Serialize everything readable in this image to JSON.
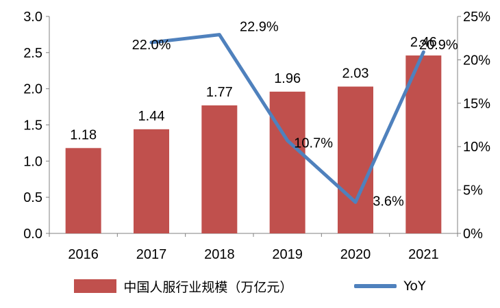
{
  "chart_data": {
    "type": "bar",
    "categories": [
      "2016",
      "2017",
      "2018",
      "2019",
      "2020",
      "2021"
    ],
    "series": [
      {
        "name": "中国人服行业规模（万亿元）",
        "type": "bar",
        "axis": "left",
        "values": [
          1.18,
          1.44,
          1.77,
          1.96,
          2.03,
          2.46
        ],
        "labels": [
          "1.18",
          "1.44",
          "1.77",
          "1.96",
          "2.03",
          "2.46"
        ],
        "color": "#c0504d"
      },
      {
        "name": "YoY",
        "type": "line",
        "axis": "right",
        "values": [
          null,
          22.0,
          22.9,
          10.7,
          3.6,
          20.9
        ],
        "labels": [
          "",
          "22.0%",
          "22.9%",
          "10.7%",
          "3.6%",
          "20.9%"
        ],
        "color": "#4f81bd"
      }
    ],
    "y_left": {
      "ylim": [
        0,
        3.0
      ],
      "ticks": [
        "0.0",
        "0.5",
        "1.0",
        "1.5",
        "2.0",
        "2.5",
        "3.0"
      ]
    },
    "y_right": {
      "ylim": [
        0,
        25
      ],
      "ticks": [
        "0%",
        "5%",
        "10%",
        "15%",
        "20%",
        "25%"
      ]
    },
    "title": "",
    "xlabel": "",
    "grid": false,
    "legend_position": "bottom"
  }
}
